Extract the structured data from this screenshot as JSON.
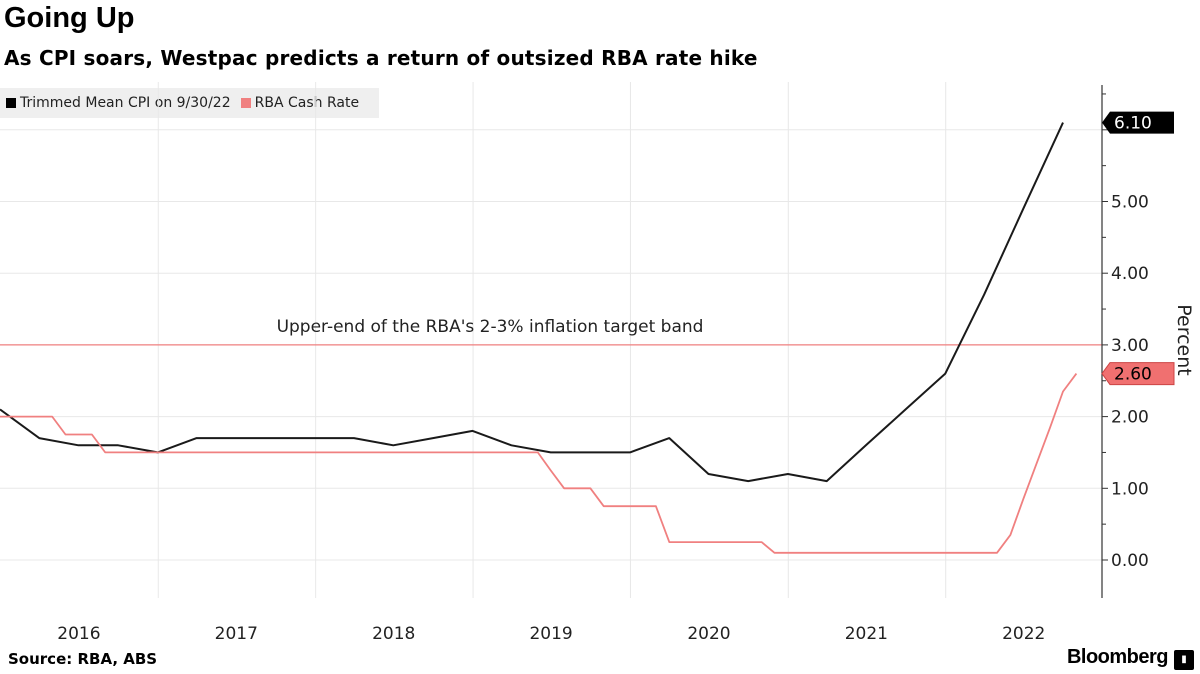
{
  "header": {
    "title": "Going Up",
    "subtitle": "As CPI soars, Westpac predicts a return of outsized RBA rate hike"
  },
  "footer": {
    "source": "Source: RBA, ABS",
    "brand": "Bloomberg"
  },
  "colors": {
    "cpi": "#1a1a1a",
    "cash_rate": "#f08080",
    "target_band": "#f08080",
    "grid": "#e8e8e8"
  },
  "chart_data": {
    "type": "line",
    "title": "Going Up",
    "subtitle": "As CPI soars, Westpac predicts a return of outsized RBA rate hike",
    "ylabel": "Percent",
    "xlabel": "",
    "ylim": [
      -0.4,
      6.6
    ],
    "xlim": [
      "2015-12-31",
      "2022-11-30"
    ],
    "y_ticks": [
      "0.00",
      "1.00",
      "2.00",
      "3.00",
      "4.00",
      "5.00"
    ],
    "x_ticks": [
      "2016",
      "2017",
      "2018",
      "2019",
      "2020",
      "2021",
      "2022"
    ],
    "grid": true,
    "y_axis_position": "right",
    "legend": {
      "placement": "top-left",
      "entries": [
        "Trimmed Mean CPI on 9/30/22",
        "RBA Cash Rate"
      ]
    },
    "annotations": [
      {
        "type": "hline",
        "y": 3.0,
        "text": "Upper-end of the RBA's 2-3% inflation target band"
      }
    ],
    "series": [
      {
        "name": "Trimmed Mean CPI on 9/30/22",
        "last_label": "6.10",
        "points": [
          [
            "2015-12-31",
            2.1
          ],
          [
            "2016-03-31",
            1.7
          ],
          [
            "2016-06-30",
            1.6
          ],
          [
            "2016-09-30",
            1.6
          ],
          [
            "2016-12-31",
            1.5
          ],
          [
            "2017-03-31",
            1.7
          ],
          [
            "2017-06-30",
            1.7
          ],
          [
            "2017-09-30",
            1.7
          ],
          [
            "2017-12-31",
            1.7
          ],
          [
            "2018-03-31",
            1.7
          ],
          [
            "2018-06-30",
            1.6
          ],
          [
            "2018-09-30",
            1.7
          ],
          [
            "2018-12-31",
            1.8
          ],
          [
            "2019-03-31",
            1.6
          ],
          [
            "2019-06-30",
            1.5
          ],
          [
            "2019-09-30",
            1.5
          ],
          [
            "2019-12-31",
            1.5
          ],
          [
            "2020-03-31",
            1.7
          ],
          [
            "2020-06-30",
            1.2
          ],
          [
            "2020-09-30",
            1.1
          ],
          [
            "2020-12-31",
            1.2
          ],
          [
            "2021-03-31",
            1.1
          ],
          [
            "2021-06-30",
            1.6
          ],
          [
            "2021-09-30",
            2.1
          ],
          [
            "2021-12-31",
            2.6
          ],
          [
            "2022-03-31",
            3.7
          ],
          [
            "2022-06-30",
            4.9
          ],
          [
            "2022-09-30",
            6.1
          ]
        ]
      },
      {
        "name": "RBA Cash Rate",
        "last_label": "2.60",
        "points": [
          [
            "2015-12-31",
            2.0
          ],
          [
            "2016-04-30",
            2.0
          ],
          [
            "2016-05-31",
            1.75
          ],
          [
            "2016-07-31",
            1.75
          ],
          [
            "2016-08-31",
            1.5
          ],
          [
            "2019-05-31",
            1.5
          ],
          [
            "2019-06-30",
            1.25
          ],
          [
            "2019-07-31",
            1.0
          ],
          [
            "2019-09-30",
            1.0
          ],
          [
            "2019-10-31",
            0.75
          ],
          [
            "2020-02-29",
            0.75
          ],
          [
            "2020-03-31",
            0.25
          ],
          [
            "2020-10-31",
            0.25
          ],
          [
            "2020-11-30",
            0.1
          ],
          [
            "2022-04-30",
            0.1
          ],
          [
            "2022-05-31",
            0.35
          ],
          [
            "2022-06-30",
            0.85
          ],
          [
            "2022-07-31",
            1.35
          ],
          [
            "2022-08-31",
            1.85
          ],
          [
            "2022-09-30",
            2.35
          ],
          [
            "2022-10-31",
            2.6
          ]
        ]
      }
    ]
  }
}
